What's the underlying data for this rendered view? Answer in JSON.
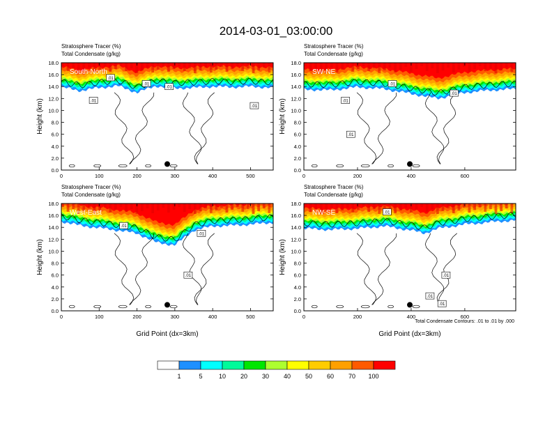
{
  "title": "2014-03-01_03:00:00",
  "panel_title_line1": "Stratosphere Tracer   (%)",
  "panel_title_line2": "Total Condensate   (g/kg)",
  "ylabel": "Height (km)",
  "xlabel": "Grid Point (dx=3km)",
  "contour_info": "Total Condensate Contours: .01 to .01 by .000",
  "contour_label": ".01",
  "colorbar": {
    "levels": [
      "1",
      "5",
      "10",
      "20",
      "30",
      "40",
      "50",
      "60",
      "70",
      "100"
    ],
    "colors": [
      "#ffffff",
      "#1e90ff",
      "#00ffff",
      "#00fa9a",
      "#00e600",
      "#adff2f",
      "#ffff00",
      "#ffcc00",
      "#ffa000",
      "#ff5a00",
      "#ff0000"
    ]
  },
  "chart_data": [
    {
      "type": "heatmap",
      "name": "South-North",
      "xlim": [
        0,
        560
      ],
      "ylim": [
        0,
        18
      ],
      "xticks": [
        "0",
        "100",
        "200",
        "300",
        "400",
        "500"
      ],
      "yticks": [
        "0.0",
        "2.0",
        "4.0",
        "6.0",
        "8.0",
        "10.0",
        "12.0",
        "14.0",
        "16.0",
        "18.0"
      ],
      "marker": {
        "x": 280,
        "y": 1.0
      },
      "tracer_base_km": [
        {
          "x": 0,
          "y": 13.9
        },
        {
          "x": 50,
          "y": 13.3
        },
        {
          "x": 100,
          "y": 13.8
        },
        {
          "x": 150,
          "y": 14.1
        },
        {
          "x": 200,
          "y": 13.0
        },
        {
          "x": 250,
          "y": 14.1
        },
        {
          "x": 300,
          "y": 13.7
        },
        {
          "x": 350,
          "y": 13.8
        },
        {
          "x": 400,
          "y": 14.0
        },
        {
          "x": 450,
          "y": 13.9
        },
        {
          "x": 500,
          "y": 14.0
        },
        {
          "x": 560,
          "y": 13.8
        }
      ],
      "contour_labels": [
        {
          "x": 130,
          "y": 15.5
        },
        {
          "x": 225,
          "y": 14.5
        },
        {
          "x": 285,
          "y": 14.0
        },
        {
          "x": 85,
          "y": 11.7
        },
        {
          "x": 510,
          "y": 10.8
        }
      ]
    },
    {
      "type": "heatmap",
      "name": "SW-NE",
      "xlim": [
        0,
        790
      ],
      "ylim": [
        0,
        18
      ],
      "xticks": [
        "0",
        "200",
        "400",
        "600"
      ],
      "yticks": [
        "0.0",
        "2.0",
        "4.0",
        "6.0",
        "8.0",
        "10.0",
        "12.0",
        "14.0",
        "16.0",
        "18.0"
      ],
      "marker": {
        "x": 395,
        "y": 1.0
      },
      "tracer_base_km": [
        {
          "x": 0,
          "y": 13.5
        },
        {
          "x": 100,
          "y": 13.4
        },
        {
          "x": 200,
          "y": 13.9
        },
        {
          "x": 300,
          "y": 13.6
        },
        {
          "x": 400,
          "y": 12.8
        },
        {
          "x": 500,
          "y": 12.0
        },
        {
          "x": 600,
          "y": 13.0
        },
        {
          "x": 700,
          "y": 13.4
        },
        {
          "x": 790,
          "y": 13.6
        }
      ],
      "contour_labels": [
        {
          "x": 330,
          "y": 14.5
        },
        {
          "x": 560,
          "y": 12.9
        },
        {
          "x": 155,
          "y": 11.7
        },
        {
          "x": 175,
          "y": 6.0
        }
      ]
    },
    {
      "type": "heatmap",
      "name": "West-East",
      "xlim": [
        0,
        560
      ],
      "ylim": [
        0,
        18
      ],
      "xticks": [
        "0",
        "100",
        "200",
        "300",
        "400",
        "500"
      ],
      "yticks": [
        "0.0",
        "2.0",
        "4.0",
        "6.0",
        "8.0",
        "10.0",
        "12.0",
        "14.0",
        "16.0",
        "18.0"
      ],
      "marker": {
        "x": 280,
        "y": 1.0
      },
      "tracer_base_km": [
        {
          "x": 0,
          "y": 15.0
        },
        {
          "x": 50,
          "y": 14.3
        },
        {
          "x": 100,
          "y": 13.9
        },
        {
          "x": 150,
          "y": 13.5
        },
        {
          "x": 200,
          "y": 13.0
        },
        {
          "x": 250,
          "y": 11.5
        },
        {
          "x": 300,
          "y": 11.0
        },
        {
          "x": 350,
          "y": 13.5
        },
        {
          "x": 400,
          "y": 14.2
        },
        {
          "x": 450,
          "y": 14.3
        },
        {
          "x": 500,
          "y": 14.5
        },
        {
          "x": 560,
          "y": 14.8
        }
      ],
      "contour_labels": [
        {
          "x": 165,
          "y": 14.3
        },
        {
          "x": 370,
          "y": 13.0
        },
        {
          "x": 335,
          "y": 6.0
        }
      ]
    },
    {
      "type": "heatmap",
      "name": "NW-SE",
      "xlim": [
        0,
        790
      ],
      "ylim": [
        0,
        18
      ],
      "xticks": [
        "0",
        "200",
        "400",
        "600"
      ],
      "yticks": [
        "0.0",
        "2.0",
        "4.0",
        "6.0",
        "8.0",
        "10.0",
        "12.0",
        "14.0",
        "16.0",
        "18.0"
      ],
      "marker": {
        "x": 395,
        "y": 1.0
      },
      "tracer_base_km": [
        {
          "x": 0,
          "y": 13.8
        },
        {
          "x": 100,
          "y": 13.6
        },
        {
          "x": 200,
          "y": 13.8
        },
        {
          "x": 300,
          "y": 14.2
        },
        {
          "x": 400,
          "y": 13.5
        },
        {
          "x": 450,
          "y": 13.0
        },
        {
          "x": 500,
          "y": 13.8
        },
        {
          "x": 600,
          "y": 14.5
        },
        {
          "x": 700,
          "y": 14.9
        },
        {
          "x": 790,
          "y": 15.2
        }
      ],
      "contour_labels": [
        {
          "x": 310,
          "y": 16.6
        },
        {
          "x": 530,
          "y": 6.0
        },
        {
          "x": 470,
          "y": 2.5
        },
        {
          "x": 515,
          "y": 1.2
        }
      ]
    }
  ]
}
